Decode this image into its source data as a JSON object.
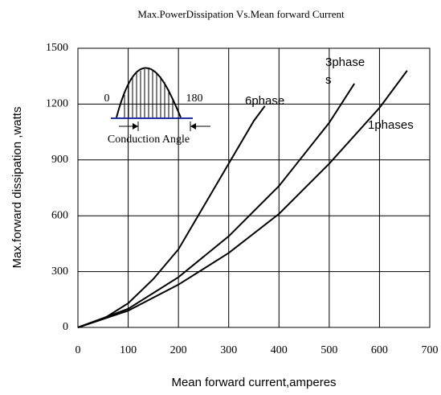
{
  "chart_data": {
    "type": "line",
    "title": "Max.PowerDissipation Vs.Mean forward Current",
    "x_label": "Mean forward current,amperes",
    "y_label": "Max.forward dissipation ,watts",
    "xlim": [
      0,
      700
    ],
    "xticks": [
      0,
      100,
      200,
      300,
      400,
      500,
      600,
      700
    ],
    "ylim": [
      0,
      1500
    ],
    "yticks": [
      0,
      300,
      600,
      900,
      1200,
      1500
    ],
    "grid": true,
    "series": [
      {
        "name": "6phase",
        "color": "#000000",
        "x": [
          0,
          50,
          100,
          150,
          200,
          250,
          300,
          350,
          372
        ],
        "values": [
          0,
          45,
          130,
          260,
          420,
          650,
          880,
          1110,
          1190
        ]
      },
      {
        "name": "3phases",
        "color": "#000000",
        "x": [
          0,
          100,
          200,
          300,
          400,
          500,
          550
        ],
        "values": [
          0,
          100,
          270,
          490,
          760,
          1100,
          1310
        ]
      },
      {
        "name": "1phases",
        "color": "#000000",
        "x": [
          0,
          100,
          200,
          300,
          400,
          500,
          600,
          655
        ],
        "values": [
          0,
          90,
          230,
          400,
          610,
          880,
          1180,
          1380
        ]
      }
    ],
    "annotations": [
      "0",
      "180",
      "Conduction Angle"
    ]
  }
}
